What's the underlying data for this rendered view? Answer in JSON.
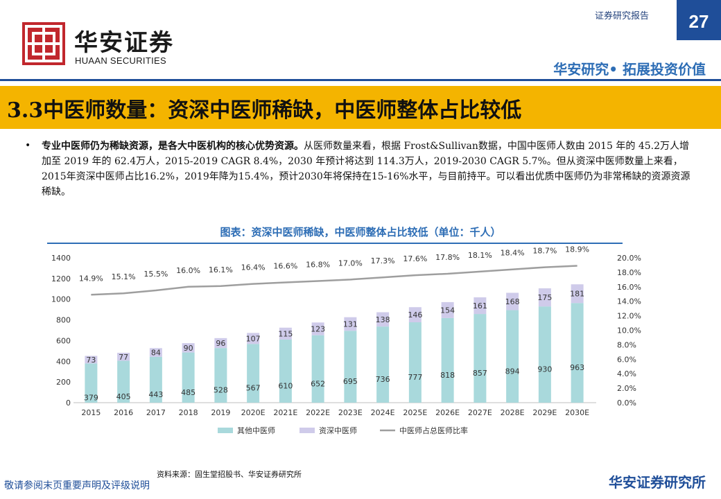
{
  "header": {
    "logo_icon": "huaan-logo-icon",
    "brand_cn": "华安证券",
    "brand_en": "HUAAN SECURITIES",
    "report_type": "证券研究报告",
    "page_number": "27",
    "slogan": "华安研究• 拓展投资价值"
  },
  "section": {
    "title": "3.3中医师数量：资深中医师稀缺，中医师整体占比较低"
  },
  "body": {
    "bullet": "•",
    "para_bold": "专业中医师仍为稀缺资源，是各大中医机构的核心优势资源。",
    "para_rest": "从医师数量来看，根据 Frost&Sullivan数据，中国中医师人数由 2015 年的 45.2万人增加至 2019 年的 62.4万人，2015-2019 CAGR 8.4%，2030 年预计将达到 114.3万人，2019-2030 CAGR 5.7%。但从资深中医师数量上来看，2015年资深中医师占比16.2%，2019年降为15.4%，预计2030年将保持在15-16%水平，与目前持平。可以看出优质中医师仍为非常稀缺的资源资源稀缺。"
  },
  "chart_data": {
    "type": "bar",
    "title": "图表：资深中医师稀缺，中医师整体占比较低（单位：千人）",
    "categories": [
      "2015",
      "2016",
      "2017",
      "2018",
      "2019",
      "2020E",
      "2021E",
      "2022E",
      "2023E",
      "2024E",
      "2025E",
      "2026E",
      "2027E",
      "2028E",
      "2029E",
      "2030E"
    ],
    "series": [
      {
        "name": "其他中医师",
        "kind": "bar",
        "color": "#a9d9dc",
        "values": [
          379,
          405,
          443,
          485,
          528,
          567,
          610,
          652,
          695,
          736,
          777,
          818,
          857,
          894,
          930,
          963
        ]
      },
      {
        "name": "资深中医师",
        "kind": "bar",
        "color": "#cfcbea",
        "values": [
          73,
          77,
          84,
          90,
          96,
          107,
          115,
          123,
          131,
          138,
          146,
          154,
          161,
          168,
          175,
          181
        ]
      },
      {
        "name": "中医师占总医师比率",
        "kind": "line",
        "axis": "right",
        "color": "#9e9e9e",
        "values": [
          14.9,
          15.1,
          15.5,
          16.0,
          16.1,
          16.4,
          16.6,
          16.8,
          17.0,
          17.3,
          17.6,
          17.8,
          18.1,
          18.4,
          18.7,
          18.9
        ]
      }
    ],
    "stacked": true,
    "ylim": [
      0,
      1400
    ],
    "yticks": [
      0,
      200,
      400,
      600,
      800,
      1000,
      1200,
      1400
    ],
    "y2lim": [
      0,
      20
    ],
    "y2ticks": [
      "0.0%",
      "2.0%",
      "4.0%",
      "6.0%",
      "8.0%",
      "10.0%",
      "12.0%",
      "14.0%",
      "16.0%",
      "18.0%",
      "20.0%"
    ],
    "line_labels": [
      "14.9%",
      "15.1%",
      "15.5%",
      "16.0%",
      "16.1%",
      "16.4%",
      "16.6%",
      "16.8%",
      "17.0%",
      "17.3%",
      "17.6%",
      "17.8%",
      "18.1%",
      "18.4%",
      "18.7%",
      "18.9%"
    ],
    "legend_position": "bottom",
    "grid": false
  },
  "footer": {
    "source": "资料来源：固生堂招股书、华安证券研究所",
    "disclaimer": "敬请参阅末页重要声明及评级说明",
    "firm": "华安证券研究所"
  }
}
